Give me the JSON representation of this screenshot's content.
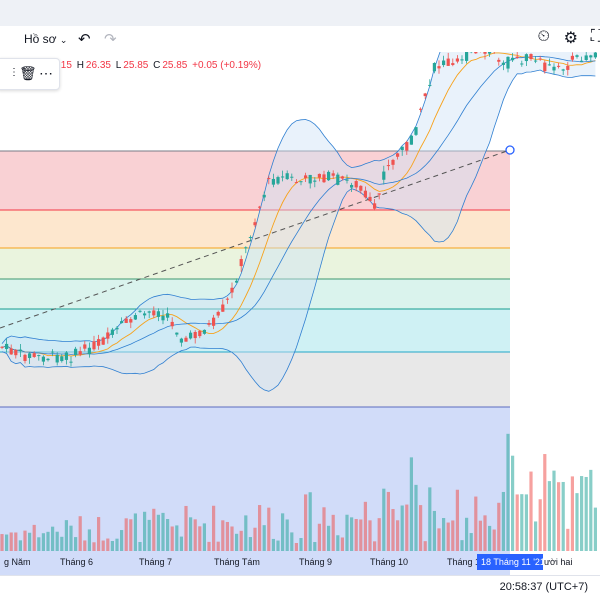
{
  "toolbar": {
    "profile_label": "Hồ sơ",
    "undo_icon": "undo-icon",
    "redo_icon": "redo-icon",
    "right_icons": [
      "alert-clock-icon",
      "gear-icon",
      "fullscreen-icon"
    ]
  },
  "ohlc": {
    "open_partial": ".15",
    "high_label": "H",
    "high": "26.35",
    "low_label": "L",
    "low": "25.85",
    "close_label": "C",
    "close": "25.85",
    "change": "+0.05 (+0.19%)"
  },
  "floating_toolbar": {
    "icons": [
      "drag-handle-icon",
      "trash-icon",
      "more-icon"
    ]
  },
  "x_axis": {
    "labels": [
      "g Năm",
      "Tháng 6",
      "Tháng 7",
      "Tháng Tám",
      "Tháng 9",
      "Tháng 10",
      "Tháng 1",
      "ười hai"
    ],
    "highlight_label": "18 Tháng 11 '21"
  },
  "clock": "20:58:37 (UTC+7)",
  "colors": {
    "up": "#26a69a",
    "down": "#ef5350",
    "bollinger": "#2f7fd1",
    "ma": "#f7a21b",
    "accent": "#2962ff"
  },
  "fib_levels": [
    {
      "color": "#f23645",
      "fill": "#f8c9cd"
    },
    {
      "color": "#f23645",
      "fill": "#fde3c6"
    },
    {
      "color": "#f7a21b",
      "fill": "#e6f2d8"
    },
    {
      "color": "#3d9970",
      "fill": "#d3f1ea"
    },
    {
      "color": "#159c8f",
      "fill": "#c7eef2"
    },
    {
      "color": "#22a6c7",
      "fill": "#e4e4e4"
    },
    {
      "color": "#5c6bc0",
      "fill": ""
    }
  ]
}
